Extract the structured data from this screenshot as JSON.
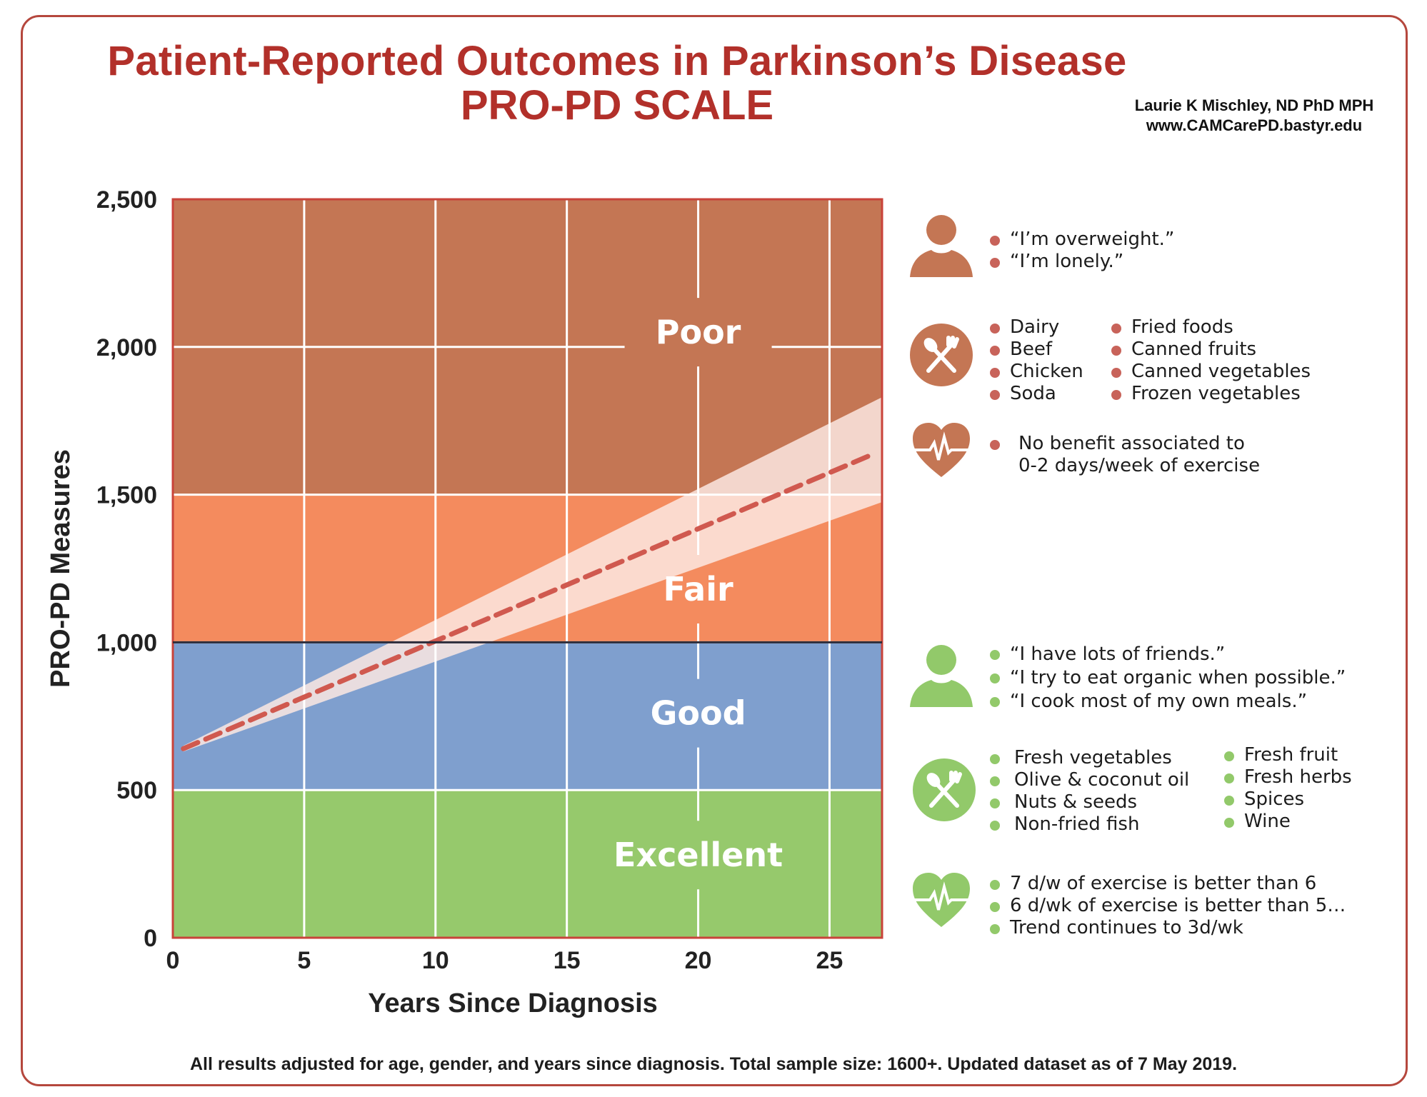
{
  "header": {
    "title_line1": "Patient-Reported Outcomes in Parkinson’s Disease",
    "title_line2": "PRO-PD SCALE",
    "author": "Laurie K Mischley, ND PhD MPH",
    "website": "www.CAMCarePD.bastyr.edu"
  },
  "chart_data": {
    "type": "line",
    "title": "Patient-Reported Outcomes in Parkinson’s Disease — PRO-PD SCALE",
    "xlabel": "Years Since Diagnosis",
    "ylabel": "PRO-PD Measures",
    "xlim": [
      0,
      27
    ],
    "ylim": [
      0,
      2500
    ],
    "x_ticks": [
      0,
      5,
      10,
      15,
      20,
      25
    ],
    "x_tick_labels": [
      "0",
      "5",
      "10",
      "15",
      "20",
      "25"
    ],
    "y_ticks": [
      0,
      500,
      1000,
      1500,
      2000,
      2500
    ],
    "y_tick_labels": [
      "0",
      "500",
      "1,000",
      "1,500",
      "2,000",
      "2,500"
    ],
    "grid": true,
    "zones": [
      {
        "label": "Excellent",
        "from": 0,
        "to": 500,
        "color": "#96c96c"
      },
      {
        "label": "Good",
        "from": 500,
        "to": 1000,
        "color": "#7f9fce"
      },
      {
        "label": "Fair",
        "from": 1000,
        "to": 1500,
        "color": "#f48b5e"
      },
      {
        "label": "Poor",
        "from": 1500,
        "to": 2500,
        "color": "#c47654"
      }
    ],
    "series": [
      {
        "name": "Trend (dashed)",
        "x": [
          0.4,
          26.6
        ],
        "y": [
          640,
          1635
        ],
        "color": "#d0594f",
        "style": "dashed"
      }
    ],
    "confidence_band": {
      "x": [
        0.4,
        27
      ],
      "upper": [
        650,
        1830
      ],
      "lower": [
        630,
        1475
      ],
      "color": "#fbe8e2"
    }
  },
  "panel": {
    "poor": {
      "quotes": [
        "“I’m overweight.”",
        "“I’m lonely.”"
      ],
      "foods_col1": [
        "Dairy",
        "Beef",
        "Chicken",
        "Soda"
      ],
      "foods_col2": [
        "Fried foods",
        "Canned fruits",
        "Canned vegetables",
        "Frozen vegetables"
      ],
      "exercise": [
        "No benefit associated to",
        "0-2 days/week of exercise"
      ]
    },
    "good": {
      "quotes": [
        "“I have lots of friends.”",
        "“I try to eat organic when possible.”",
        "“I cook most of my own meals.”"
      ],
      "foods_col1": [
        "Fresh vegetables",
        "Olive & coconut oil",
        "Nuts & seeds",
        "Non-fried fish"
      ],
      "foods_col2": [
        "Fresh fruit",
        "Fresh herbs",
        "Spices",
        "Wine"
      ],
      "exercise": [
        "7 d/w of exercise is better than 6",
        "6 d/wk of exercise is better than 5…",
        "Trend continues to 3d/wk"
      ]
    },
    "icons": {
      "person": "person-icon",
      "food": "utensils-icon",
      "heart": "heartbeat-icon"
    },
    "colors": {
      "poor": "#c47654",
      "good": "#92c96a"
    }
  },
  "footer": {
    "note": "All results adjusted for age, gender, and years since diagnosis. Total sample size: 1600+. Updated dataset as of 7 May 2019."
  }
}
